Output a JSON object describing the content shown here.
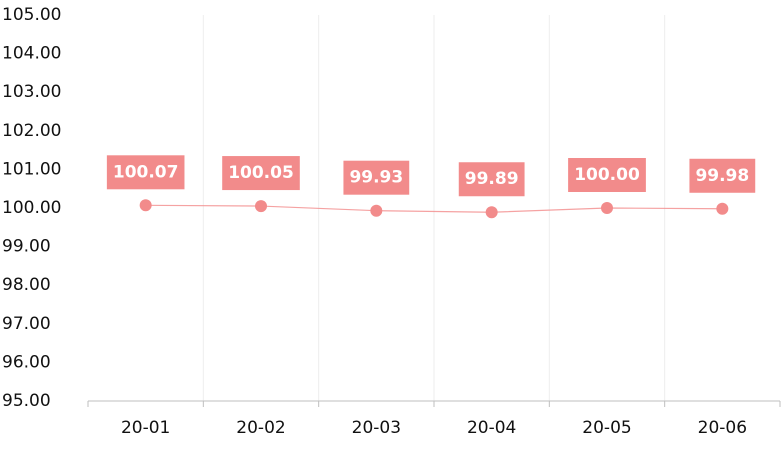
{
  "chart_data": {
    "type": "line",
    "categories": [
      "20-01",
      "20-02",
      "20-03",
      "20-04",
      "20-05",
      "20-06"
    ],
    "values": [
      100.07,
      100.05,
      99.93,
      99.89,
      100.0,
      99.98
    ],
    "value_labels": [
      "100.07",
      "100.05",
      "99.93",
      "99.89",
      "100.00",
      "99.98"
    ],
    "color": "#f28b8b",
    "ylim": [
      95,
      105
    ],
    "yticks": [
      {
        "value": 95,
        "label": "95.00"
      },
      {
        "value": 96,
        "label": "96.00"
      },
      {
        "value": 97,
        "label": "97.00"
      },
      {
        "value": 98,
        "label": "98.00"
      },
      {
        "value": 99,
        "label": "99.00"
      },
      {
        "value": 100,
        "label": "100.00"
      },
      {
        "value": 101,
        "label": "101.00"
      },
      {
        "value": 102,
        "label": "102.00"
      },
      {
        "value": 103,
        "label": "103.00"
      },
      {
        "value": 104,
        "label": "104.00"
      },
      {
        "value": 105,
        "label": "105.00"
      }
    ]
  }
}
